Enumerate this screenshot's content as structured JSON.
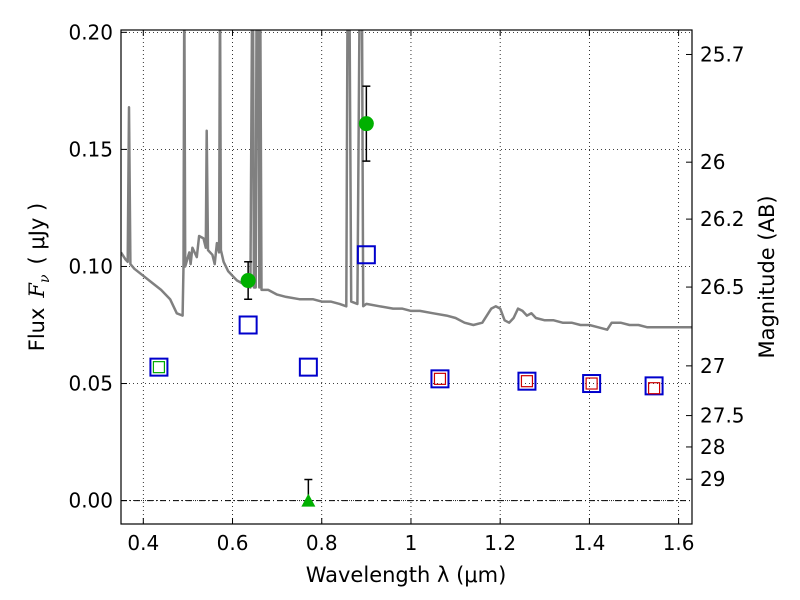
{
  "chart_data": {
    "type": "scatter",
    "xlabel": "Wavelength  λ (μm)",
    "ylabel_prefix": "Flux",
    "ylabel_symbol": "F",
    "ylabel_subscript": "ν",
    "ylabel_suffix": "( μJy )",
    "y2label": "Magnitude (AB)",
    "xlim": [
      0.35,
      1.63
    ],
    "ylim": [
      -0.01,
      0.201
    ],
    "grid": true,
    "x_ticks": [
      {
        "value": 0.4,
        "label": "0.4"
      },
      {
        "value": 0.6,
        "label": "0.6"
      },
      {
        "value": 0.8,
        "label": "0.8"
      },
      {
        "value": 1.0,
        "label": "1"
      },
      {
        "value": 1.2,
        "label": "1.2"
      },
      {
        "value": 1.4,
        "label": "1.4"
      },
      {
        "value": 1.6,
        "label": "1.6"
      }
    ],
    "y_ticks": [
      {
        "value": 0.0,
        "label": "0.00"
      },
      {
        "value": 0.05,
        "label": "0.05"
      },
      {
        "value": 0.1,
        "label": "0.10"
      },
      {
        "value": 0.15,
        "label": "0.15"
      },
      {
        "value": 0.2,
        "label": "0.20"
      }
    ],
    "y2_ticks": [
      {
        "value": 25.7,
        "label": "25.7"
      },
      {
        "value": 26,
        "label": "26"
      },
      {
        "value": 26.2,
        "label": "26.2"
      },
      {
        "value": 26.5,
        "label": "26.5"
      },
      {
        "value": 27,
        "label": "27"
      },
      {
        "value": 27.5,
        "label": "27.5"
      },
      {
        "value": 28,
        "label": "28"
      },
      {
        "value": 29,
        "label": "29"
      }
    ],
    "series": [
      {
        "type": "line",
        "color": "#808080",
        "points": [
          [
            0.35,
            0.106
          ],
          [
            0.36,
            0.103
          ],
          [
            0.365,
            0.102
          ],
          [
            0.368,
            0.168
          ],
          [
            0.371,
            0.101
          ],
          [
            0.38,
            0.099
          ],
          [
            0.4,
            0.096
          ],
          [
            0.42,
            0.093
          ],
          [
            0.44,
            0.09
          ],
          [
            0.46,
            0.086
          ],
          [
            0.475,
            0.08
          ],
          [
            0.488,
            0.079
          ],
          [
            0.49,
            0.1
          ],
          [
            0.492,
            0.22
          ],
          [
            0.494,
            0.1
          ],
          [
            0.5,
            0.104
          ],
          [
            0.503,
            0.106
          ],
          [
            0.506,
            0.101
          ],
          [
            0.51,
            0.108
          ],
          [
            0.515,
            0.106
          ],
          [
            0.52,
            0.104
          ],
          [
            0.525,
            0.113
          ],
          [
            0.535,
            0.112
          ],
          [
            0.54,
            0.108
          ],
          [
            0.542,
            0.158
          ],
          [
            0.545,
            0.107
          ],
          [
            0.555,
            0.105
          ],
          [
            0.56,
            0.101
          ],
          [
            0.565,
            0.11
          ],
          [
            0.57,
            0.106
          ],
          [
            0.572,
            0.22
          ],
          [
            0.574,
            0.107
          ],
          [
            0.58,
            0.102
          ],
          [
            0.59,
            0.098
          ],
          [
            0.6,
            0.096
          ],
          [
            0.61,
            0.094
          ],
          [
            0.62,
            0.093
          ],
          [
            0.63,
            0.092
          ],
          [
            0.64,
            0.091
          ],
          [
            0.644,
            0.22
          ],
          [
            0.646,
            0.22
          ],
          [
            0.648,
            0.091
          ],
          [
            0.652,
            0.091
          ],
          [
            0.654,
            0.22
          ],
          [
            0.657,
            0.22
          ],
          [
            0.66,
            0.091
          ],
          [
            0.662,
            0.22
          ],
          [
            0.665,
            0.09
          ],
          [
            0.68,
            0.09
          ],
          [
            0.7,
            0.088
          ],
          [
            0.72,
            0.087
          ],
          [
            0.75,
            0.086
          ],
          [
            0.78,
            0.086
          ],
          [
            0.8,
            0.085
          ],
          [
            0.82,
            0.085
          ],
          [
            0.84,
            0.084
          ],
          [
            0.855,
            0.083
          ],
          [
            0.858,
            0.22
          ],
          [
            0.862,
            0.22
          ],
          [
            0.866,
            0.085
          ],
          [
            0.88,
            0.084
          ],
          [
            0.885,
            0.22
          ],
          [
            0.89,
            0.22
          ],
          [
            0.893,
            0.083
          ],
          [
            0.9,
            0.084
          ],
          [
            0.93,
            0.083
          ],
          [
            0.96,
            0.082
          ],
          [
            0.98,
            0.082
          ],
          [
            1.0,
            0.081
          ],
          [
            1.02,
            0.081
          ],
          [
            1.05,
            0.08
          ],
          [
            1.08,
            0.079
          ],
          [
            1.1,
            0.078
          ],
          [
            1.12,
            0.076
          ],
          [
            1.14,
            0.075
          ],
          [
            1.16,
            0.076
          ],
          [
            1.18,
            0.082
          ],
          [
            1.19,
            0.083
          ],
          [
            1.2,
            0.082
          ],
          [
            1.21,
            0.077
          ],
          [
            1.22,
            0.076
          ],
          [
            1.23,
            0.078
          ],
          [
            1.24,
            0.082
          ],
          [
            1.25,
            0.081
          ],
          [
            1.26,
            0.079
          ],
          [
            1.27,
            0.08
          ],
          [
            1.28,
            0.078
          ],
          [
            1.3,
            0.077
          ],
          [
            1.32,
            0.077
          ],
          [
            1.34,
            0.076
          ],
          [
            1.36,
            0.076
          ],
          [
            1.38,
            0.075
          ],
          [
            1.4,
            0.075
          ],
          [
            1.42,
            0.074
          ],
          [
            1.44,
            0.073
          ],
          [
            1.45,
            0.076
          ],
          [
            1.47,
            0.076
          ],
          [
            1.49,
            0.075
          ],
          [
            1.51,
            0.075
          ],
          [
            1.53,
            0.074
          ],
          [
            1.56,
            0.074
          ],
          [
            1.59,
            0.074
          ],
          [
            1.63,
            0.074
          ]
        ]
      },
      {
        "type": "open-square",
        "color": "#0000cc",
        "size": "large",
        "points": [
          [
            0.435,
            0.057
          ],
          [
            0.635,
            0.075
          ],
          [
            0.77,
            0.057
          ],
          [
            0.9,
            0.105
          ],
          [
            1.065,
            0.052
          ],
          [
            1.26,
            0.051
          ],
          [
            1.405,
            0.05
          ],
          [
            1.545,
            0.049
          ]
        ]
      },
      {
        "type": "open-square",
        "color": "#cc0000",
        "size": "small",
        "points": [
          [
            1.065,
            0.052
          ],
          [
            1.26,
            0.051
          ],
          [
            1.405,
            0.05
          ],
          [
            1.545,
            0.048
          ]
        ]
      },
      {
        "type": "open-square",
        "color": "#00aa00",
        "size": "small",
        "points": [
          [
            0.435,
            0.057
          ]
        ]
      },
      {
        "type": "circle",
        "color": "#00b000",
        "points": [
          {
            "x": 0.635,
            "y": 0.094,
            "err": 0.008
          },
          {
            "x": 0.9,
            "y": 0.161,
            "err": 0.016
          }
        ]
      },
      {
        "type": "triangle",
        "color": "#00b000",
        "points": [
          {
            "x": 0.77,
            "y": 0.0,
            "err_up": 0.009
          }
        ]
      }
    ]
  }
}
